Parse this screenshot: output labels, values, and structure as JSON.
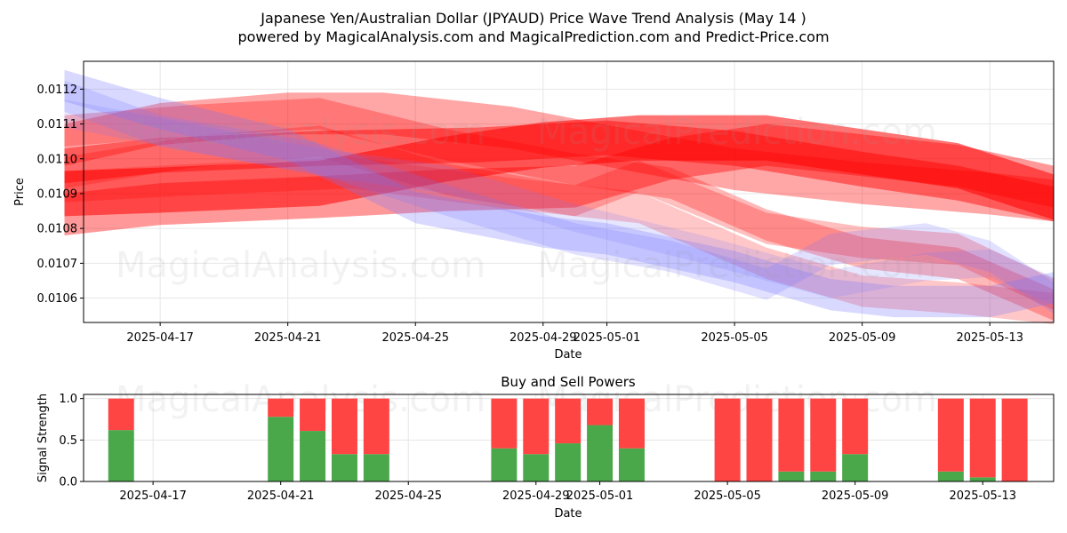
{
  "colors": {
    "up_band": "#ff0000",
    "down_band": "#7777ff",
    "buy": "#4aa84a",
    "sell": "#ff4444",
    "grid": "#e6e6e6"
  },
  "header": {
    "title": "Japanese Yen/Australian Dollar (JPYAUD) Price Wave Trend Analysis (May 14 )",
    "subtitle": "powered by MagicalAnalysis.com and MagicalPrediction.com and Predict-Price.com"
  },
  "watermarks": {
    "analysis": "MagicalAnalysis.com",
    "prediction": "MagicalPrediction.com"
  },
  "chart_data": [
    {
      "type": "area",
      "title": "",
      "xlabel": "Date",
      "ylabel": "Price",
      "x_range": [
        "2025-04-14",
        "2025-05-15"
      ],
      "ylim": [
        0.01053,
        0.01128
      ],
      "x_ticks": [
        "2025-04-17",
        "2025-04-21",
        "2025-04-25",
        "2025-04-29",
        "2025-05-01",
        "2025-05-05",
        "2025-05-09",
        "2025-05-13"
      ],
      "y_ticks": [
        "0.0106",
        "0.0107",
        "0.0108",
        "0.0109",
        "0.0110",
        "0.0111",
        "0.0112"
      ],
      "grid": true,
      "series": [
        {
          "color": "red",
          "opacity": 0.55,
          "width": 0.00013,
          "points": [
            [
              "2025-04-14",
              0.0109
            ],
            [
              "2025-04-17",
              0.01091
            ],
            [
              "2025-04-22",
              0.01093
            ],
            [
              "2025-04-26",
              0.011
            ],
            [
              "2025-04-29",
              0.01104
            ],
            [
              "2025-05-02",
              0.01106
            ],
            [
              "2025-05-06",
              0.01106
            ],
            [
              "2025-05-09",
              0.01102
            ],
            [
              "2025-05-12",
              0.01098
            ],
            [
              "2025-05-15",
              0.01089
            ]
          ]
        },
        {
          "color": "red",
          "opacity": 0.45,
          "width": 0.0001,
          "points": [
            [
              "2025-04-14",
              0.01098
            ],
            [
              "2025-04-17",
              0.01101
            ],
            [
              "2025-04-22",
              0.01103
            ],
            [
              "2025-04-27",
              0.01104
            ],
            [
              "2025-05-01",
              0.01106
            ],
            [
              "2025-05-05",
              0.01103
            ],
            [
              "2025-05-09",
              0.01097
            ],
            [
              "2025-05-12",
              0.01093
            ],
            [
              "2025-05-15",
              0.01087
            ]
          ]
        },
        {
          "color": "red",
          "opacity": 0.4,
          "width": 0.00012,
          "points": [
            [
              "2025-04-14",
              0.01084
            ],
            [
              "2025-04-17",
              0.01087
            ],
            [
              "2025-04-22",
              0.01089
            ],
            [
              "2025-04-26",
              0.01091
            ],
            [
              "2025-04-30",
              0.01092
            ],
            [
              "2025-05-03",
              0.011
            ],
            [
              "2025-05-06",
              0.01104
            ],
            [
              "2025-05-09",
              0.01101
            ],
            [
              "2025-05-12",
              0.01098
            ],
            [
              "2025-05-15",
              0.01092
            ]
          ]
        },
        {
          "color": "red",
          "opacity": 0.35,
          "width": 0.00012,
          "points": [
            [
              "2025-04-14",
              0.01104
            ],
            [
              "2025-04-17",
              0.0111
            ],
            [
              "2025-04-21",
              0.01113
            ],
            [
              "2025-04-24",
              0.01113
            ],
            [
              "2025-04-28",
              0.01109
            ],
            [
              "2025-05-02",
              0.01102
            ],
            [
              "2025-05-05",
              0.01097
            ],
            [
              "2025-05-09",
              0.01093
            ],
            [
              "2025-05-13",
              0.0109
            ],
            [
              "2025-05-15",
              0.01088
            ]
          ]
        },
        {
          "color": "red",
          "opacity": 0.28,
          "width": 9e-05,
          "points": [
            [
              "2025-04-14",
              0.01108
            ],
            [
              "2025-04-18",
              0.01111
            ],
            [
              "2025-04-22",
              0.01113
            ],
            [
              "2025-04-26",
              0.01104
            ],
            [
              "2025-04-30",
              0.01097
            ],
            [
              "2025-05-03",
              0.01093
            ],
            [
              "2025-05-06",
              0.01081
            ],
            [
              "2025-05-09",
              0.01073
            ],
            [
              "2025-05-12",
              0.0107
            ],
            [
              "2025-05-15",
              0.01058
            ]
          ]
        },
        {
          "color": "red",
          "opacity": 0.25,
          "width": 9e-05,
          "points": [
            [
              "2025-04-14",
              0.01096
            ],
            [
              "2025-04-18",
              0.01102
            ],
            [
              "2025-04-22",
              0.01105
            ],
            [
              "2025-04-26",
              0.01094
            ],
            [
              "2025-04-30",
              0.01088
            ],
            [
              "2025-05-02",
              0.01095
            ],
            [
              "2025-05-06",
              0.0108
            ],
            [
              "2025-05-09",
              0.01076
            ],
            [
              "2025-05-12",
              0.01074
            ],
            [
              "2025-05-15",
              0.01061
            ]
          ]
        },
        {
          "color": "red",
          "opacity": 0.22,
          "width": 9e-05,
          "points": [
            [
              "2025-04-14",
              0.01092
            ],
            [
              "2025-04-18",
              0.01094
            ],
            [
              "2025-04-23",
              0.01096
            ],
            [
              "2025-04-28",
              0.0109
            ],
            [
              "2025-05-02",
              0.01086
            ],
            [
              "2025-05-06",
              0.0107
            ],
            [
              "2025-05-09",
              0.01062
            ],
            [
              "2025-05-12",
              0.0106
            ],
            [
              "2025-05-15",
              0.01057
            ]
          ]
        },
        {
          "color": "blue",
          "opacity": 0.28,
          "width": 9e-05,
          "points": [
            [
              "2025-04-14",
              0.01121
            ],
            [
              "2025-04-17",
              0.01113
            ],
            [
              "2025-04-21",
              0.01104
            ],
            [
              "2025-04-25",
              0.01086
            ],
            [
              "2025-04-29",
              0.01079
            ],
            [
              "2025-05-01",
              0.01077
            ],
            [
              "2025-05-05",
              0.01069
            ],
            [
              "2025-05-08",
              0.01061
            ],
            [
              "2025-05-10",
              0.01059
            ],
            [
              "2025-05-13",
              0.01059
            ],
            [
              "2025-05-15",
              0.01063
            ]
          ]
        },
        {
          "color": "blue",
          "opacity": 0.22,
          "width": 9e-05,
          "points": [
            [
              "2025-04-14",
              0.01118
            ],
            [
              "2025-04-17",
              0.01108
            ],
            [
              "2025-04-22",
              0.011
            ],
            [
              "2025-04-26",
              0.01088
            ],
            [
              "2025-04-30",
              0.01077
            ],
            [
              "2025-05-03",
              0.01072
            ],
            [
              "2025-05-06",
              0.01064
            ],
            [
              "2025-05-08",
              0.01074
            ],
            [
              "2025-05-11",
              0.01077
            ],
            [
              "2025-05-13",
              0.01072
            ],
            [
              "2025-05-15",
              0.0106
            ]
          ]
        },
        {
          "color": "blue",
          "opacity": 0.18,
          "width": 8e-05,
          "points": [
            [
              "2025-04-14",
              0.01113
            ],
            [
              "2025-04-18",
              0.01106
            ],
            [
              "2025-04-22",
              0.01099
            ],
            [
              "2025-04-26",
              0.01094
            ],
            [
              "2025-04-30",
              0.01083
            ],
            [
              "2025-05-04",
              0.01074
            ],
            [
              "2025-05-08",
              0.01064
            ],
            [
              "2025-05-11",
              0.01069
            ],
            [
              "2025-05-13",
              0.0107
            ],
            [
              "2025-05-15",
              0.01062
            ]
          ]
        }
      ]
    },
    {
      "type": "bar",
      "title": "Buy and Sell Powers",
      "xlabel": "Date",
      "ylabel": "Signal Strength",
      "ylim": [
        0,
        1.05
      ],
      "x_ticks": [
        "2025-04-17",
        "2025-04-21",
        "2025-04-25",
        "2025-04-29",
        "2025-05-01",
        "2025-05-05",
        "2025-05-09",
        "2025-05-13"
      ],
      "y_ticks": [
        "0.0",
        "0.5",
        "1.0"
      ],
      "grid": true,
      "categories": [
        "2025-04-16",
        "2025-04-21",
        "2025-04-22",
        "2025-04-23",
        "2025-04-24",
        "2025-04-28",
        "2025-04-29",
        "2025-04-30",
        "2025-05-01",
        "2025-05-02",
        "2025-05-05",
        "2025-05-06",
        "2025-05-07",
        "2025-05-08",
        "2025-05-09",
        "2025-05-12",
        "2025-05-13",
        "2025-05-14"
      ],
      "series": [
        {
          "values": [
            0.62,
            0.78,
            0.61,
            0.33,
            0.33,
            0.4,
            0.33,
            0.46,
            0.68,
            0.4,
            0.0,
            0.0,
            0.12,
            0.12,
            0.33,
            0.12,
            0.05,
            0.0
          ]
        },
        {
          "values": [
            0.38,
            0.22,
            0.39,
            0.67,
            0.67,
            0.6,
            0.67,
            0.54,
            0.32,
            0.6,
            1.0,
            1.0,
            0.88,
            0.88,
            0.67,
            0.88,
            0.95,
            1.0
          ]
        }
      ]
    }
  ]
}
